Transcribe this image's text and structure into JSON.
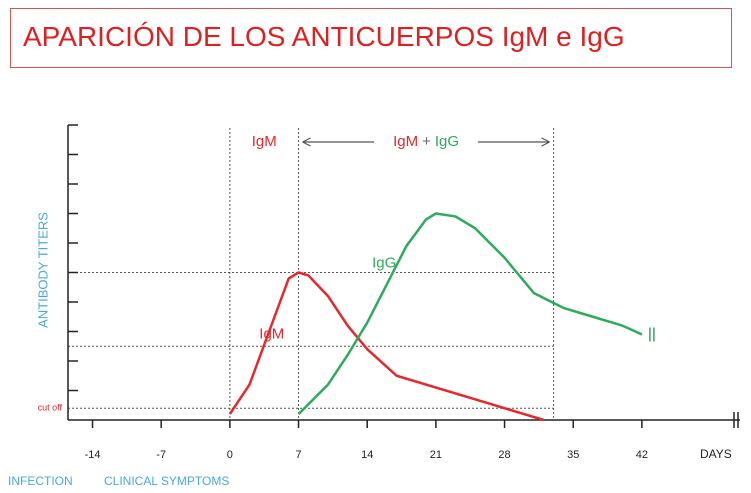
{
  "title": "APARICIÓN DE LOS ANTICUERPOS IgM e IgG",
  "chart_data": {
    "type": "line",
    "y_label": "ANTIBODY TITERS",
    "x_label": "DAYS",
    "xlim": [
      -16.5,
      52
    ],
    "xticks": [
      -14,
      -7,
      0,
      7,
      14,
      21,
      28,
      35,
      42
    ],
    "ylim": [
      0,
      10
    ],
    "yticks": [
      1,
      2,
      3,
      4,
      5,
      6,
      7,
      8,
      9,
      10
    ],
    "x_reference_lines": [
      0,
      7,
      33
    ],
    "y_reference_lines": [
      5,
      2.5,
      0.4
    ],
    "cutoff": {
      "text": "cut off",
      "value": 0.4
    },
    "top_label": "IgM",
    "span_label": [
      "IgM",
      "+",
      "IgG"
    ],
    "bottom_labels": [
      "INFECTION",
      "CLINICAL SYMPTOMS"
    ],
    "series": [
      {
        "name": "IgM",
        "color": "#e8262b",
        "x": [
          0,
          2,
          4,
          6,
          7,
          8,
          10,
          12,
          14,
          17,
          21,
          25,
          29,
          32
        ],
        "values": [
          0.2,
          1.2,
          3,
          4.8,
          5,
          4.9,
          4.2,
          3.2,
          2.4,
          1.5,
          1.1,
          0.7,
          0.3,
          0
        ]
      },
      {
        "name": "IgG",
        "color": "#2eaa5c",
        "x": [
          7,
          10,
          12,
          14,
          16,
          18,
          20,
          21,
          23,
          25,
          28,
          31,
          34,
          37,
          40,
          42
        ],
        "values": [
          0.2,
          1.2,
          2.2,
          3.3,
          4.6,
          5.9,
          6.8,
          7,
          6.9,
          6.5,
          5.5,
          4.3,
          3.8,
          3.5,
          3.2,
          2.9
        ]
      }
    ]
  }
}
